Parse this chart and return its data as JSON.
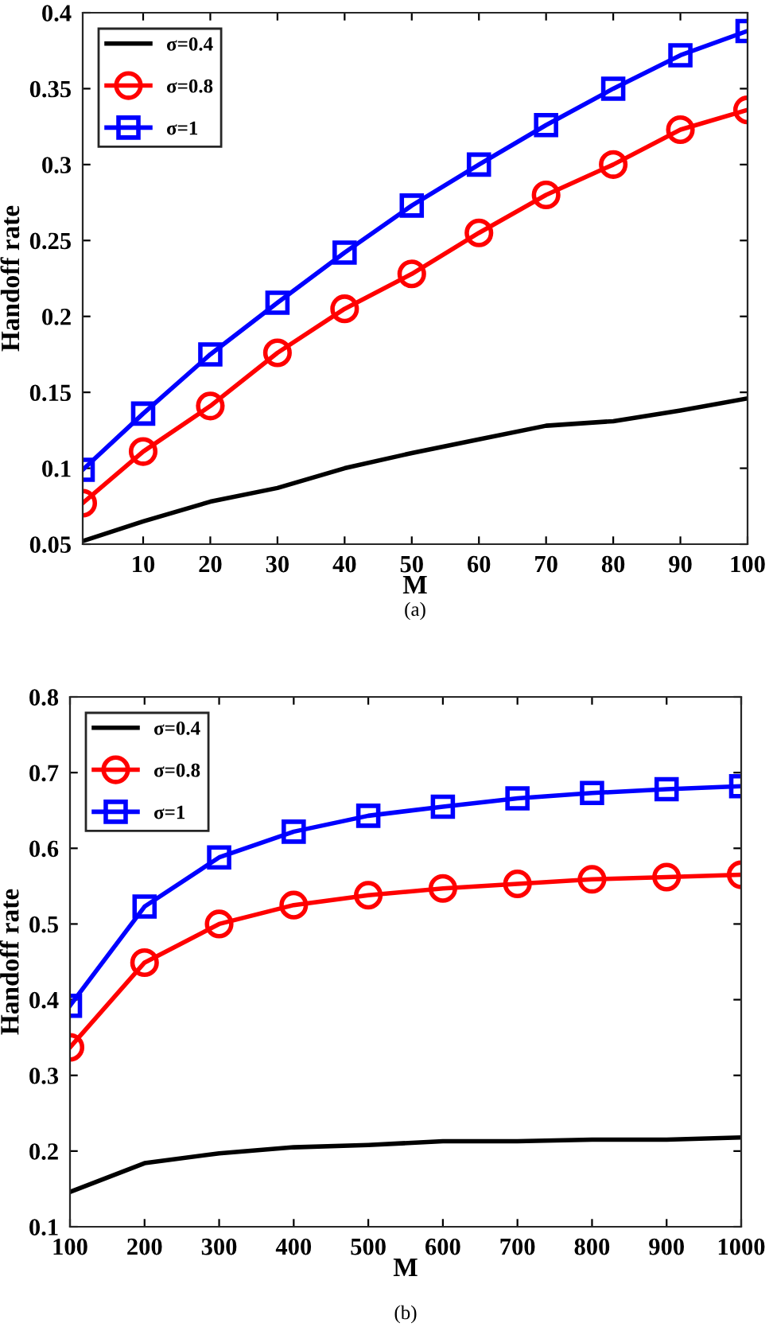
{
  "chart_data": [
    {
      "type": "line",
      "xlabel": "M",
      "ylabel": "Handoff rate",
      "annotations": [
        "(a)"
      ],
      "x": [
        1,
        10,
        20,
        30,
        40,
        50,
        60,
        70,
        80,
        90,
        100
      ],
      "xlim": [
        1,
        100
      ],
      "xticks": [
        10,
        20,
        30,
        40,
        50,
        60,
        70,
        80,
        90,
        100
      ],
      "ylim": [
        0.05,
        0.4
      ],
      "yticks": [
        0.05,
        0.1,
        0.15,
        0.2,
        0.25,
        0.3,
        0.35,
        0.4
      ],
      "grid": false,
      "legend": "top left",
      "line_style": "solid",
      "series": [
        {
          "name": "σ=0.4",
          "color": "#000000",
          "marker": "none",
          "values": [
            0.052,
            0.065,
            0.078,
            0.087,
            0.1,
            0.11,
            0.119,
            0.128,
            0.131,
            0.138,
            0.146
          ]
        },
        {
          "name": "σ=0.8",
          "color": "#ff0000",
          "marker": "circle",
          "values": [
            0.077,
            0.111,
            0.141,
            0.176,
            0.205,
            0.228,
            0.255,
            0.28,
            0.3,
            0.323,
            0.336
          ]
        },
        {
          "name": "σ=1",
          "color": "#0000ff",
          "marker": "square",
          "values": [
            0.099,
            0.136,
            0.175,
            0.209,
            0.242,
            0.273,
            0.3,
            0.326,
            0.35,
            0.372,
            0.388
          ]
        }
      ]
    },
    {
      "type": "line",
      "xlabel": "M",
      "ylabel": "Handoff rate",
      "annotations": [
        "(b)"
      ],
      "x": [
        100,
        200,
        300,
        400,
        500,
        600,
        700,
        800,
        900,
        1000
      ],
      "xlim": [
        100,
        1000
      ],
      "xticks": [
        100,
        200,
        300,
        400,
        500,
        600,
        700,
        800,
        900,
        1000
      ],
      "ylim": [
        0.1,
        0.8
      ],
      "yticks": [
        0.1,
        0.2,
        0.3,
        0.4,
        0.5,
        0.6,
        0.7,
        0.8
      ],
      "grid": false,
      "legend": "top left",
      "line_style": "solid",
      "series": [
        {
          "name": "σ=0.4",
          "color": "#000000",
          "marker": "none",
          "values": [
            0.146,
            0.184,
            0.197,
            0.205,
            0.208,
            0.213,
            0.213,
            0.215,
            0.215,
            0.218
          ]
        },
        {
          "name": "σ=0.8",
          "color": "#ff0000",
          "marker": "circle",
          "values": [
            0.337,
            0.449,
            0.5,
            0.525,
            0.538,
            0.547,
            0.553,
            0.559,
            0.562,
            0.565
          ]
        },
        {
          "name": "σ=1",
          "color": "#0000ff",
          "marker": "square",
          "values": [
            0.392,
            0.523,
            0.588,
            0.622,
            0.643,
            0.655,
            0.666,
            0.673,
            0.678,
            0.682
          ]
        }
      ]
    }
  ]
}
